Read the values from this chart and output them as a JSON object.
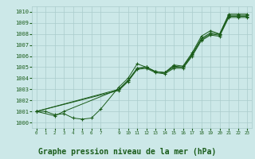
{
  "background_color": "#cce8e8",
  "grid_color": "#aacccc",
  "line_color": "#1a5c1a",
  "marker_color": "#1a5c1a",
  "xlabel": "Graphe pression niveau de la mer (hPa)",
  "xlabel_fontsize": 7,
  "ylabel_values": [
    1000,
    1001,
    1002,
    1003,
    1004,
    1005,
    1006,
    1007,
    1008,
    1009,
    1010
  ],
  "xlim": [
    -0.5,
    23.5
  ],
  "ylim": [
    999.5,
    1010.5
  ],
  "x_ticks": [
    0,
    1,
    2,
    3,
    4,
    5,
    6,
    7,
    9,
    10,
    11,
    12,
    13,
    14,
    15,
    16,
    17,
    18,
    19,
    20,
    21,
    22,
    23
  ],
  "series1_x": [
    0,
    1,
    2,
    3,
    4,
    5,
    6,
    7,
    9,
    10,
    11,
    12,
    13,
    14,
    15,
    16,
    17,
    18,
    19,
    20,
    21,
    22,
    23
  ],
  "series1_y": [
    1001.0,
    1001.0,
    1000.7,
    1000.8,
    1000.4,
    1000.3,
    1000.4,
    1001.2,
    1003.2,
    1004.0,
    1005.3,
    1005.0,
    1004.6,
    1004.5,
    1005.2,
    1005.1,
    1006.3,
    1007.8,
    1008.3,
    1008.0,
    1009.8,
    1009.8,
    1009.8
  ],
  "series2_x": [
    0,
    2,
    3,
    9,
    10,
    11,
    12,
    13,
    14,
    15,
    16,
    17,
    18,
    19,
    20,
    21,
    22,
    23
  ],
  "series2_y": [
    1001.0,
    1000.6,
    1001.0,
    1003.0,
    1003.8,
    1004.9,
    1005.0,
    1004.6,
    1004.5,
    1005.1,
    1005.0,
    1006.2,
    1007.6,
    1008.1,
    1008.0,
    1009.7,
    1009.7,
    1009.7
  ],
  "series3_x": [
    0,
    9,
    10,
    11,
    12,
    13,
    14,
    15,
    16,
    17,
    18,
    19,
    20,
    21,
    22,
    23
  ],
  "series3_y": [
    1001.0,
    1003.0,
    1003.8,
    1004.9,
    1005.0,
    1004.6,
    1004.5,
    1005.0,
    1005.0,
    1006.1,
    1007.5,
    1008.0,
    1007.9,
    1009.6,
    1009.6,
    1009.6
  ],
  "series4_x": [
    0,
    9,
    10,
    11,
    12,
    13,
    14,
    15,
    16,
    17,
    18,
    19,
    20,
    21,
    22,
    23
  ],
  "series4_y": [
    1001.0,
    1002.9,
    1003.7,
    1004.8,
    1004.9,
    1004.5,
    1004.4,
    1004.9,
    1004.9,
    1006.0,
    1007.4,
    1007.9,
    1007.8,
    1009.5,
    1009.5,
    1009.5
  ]
}
